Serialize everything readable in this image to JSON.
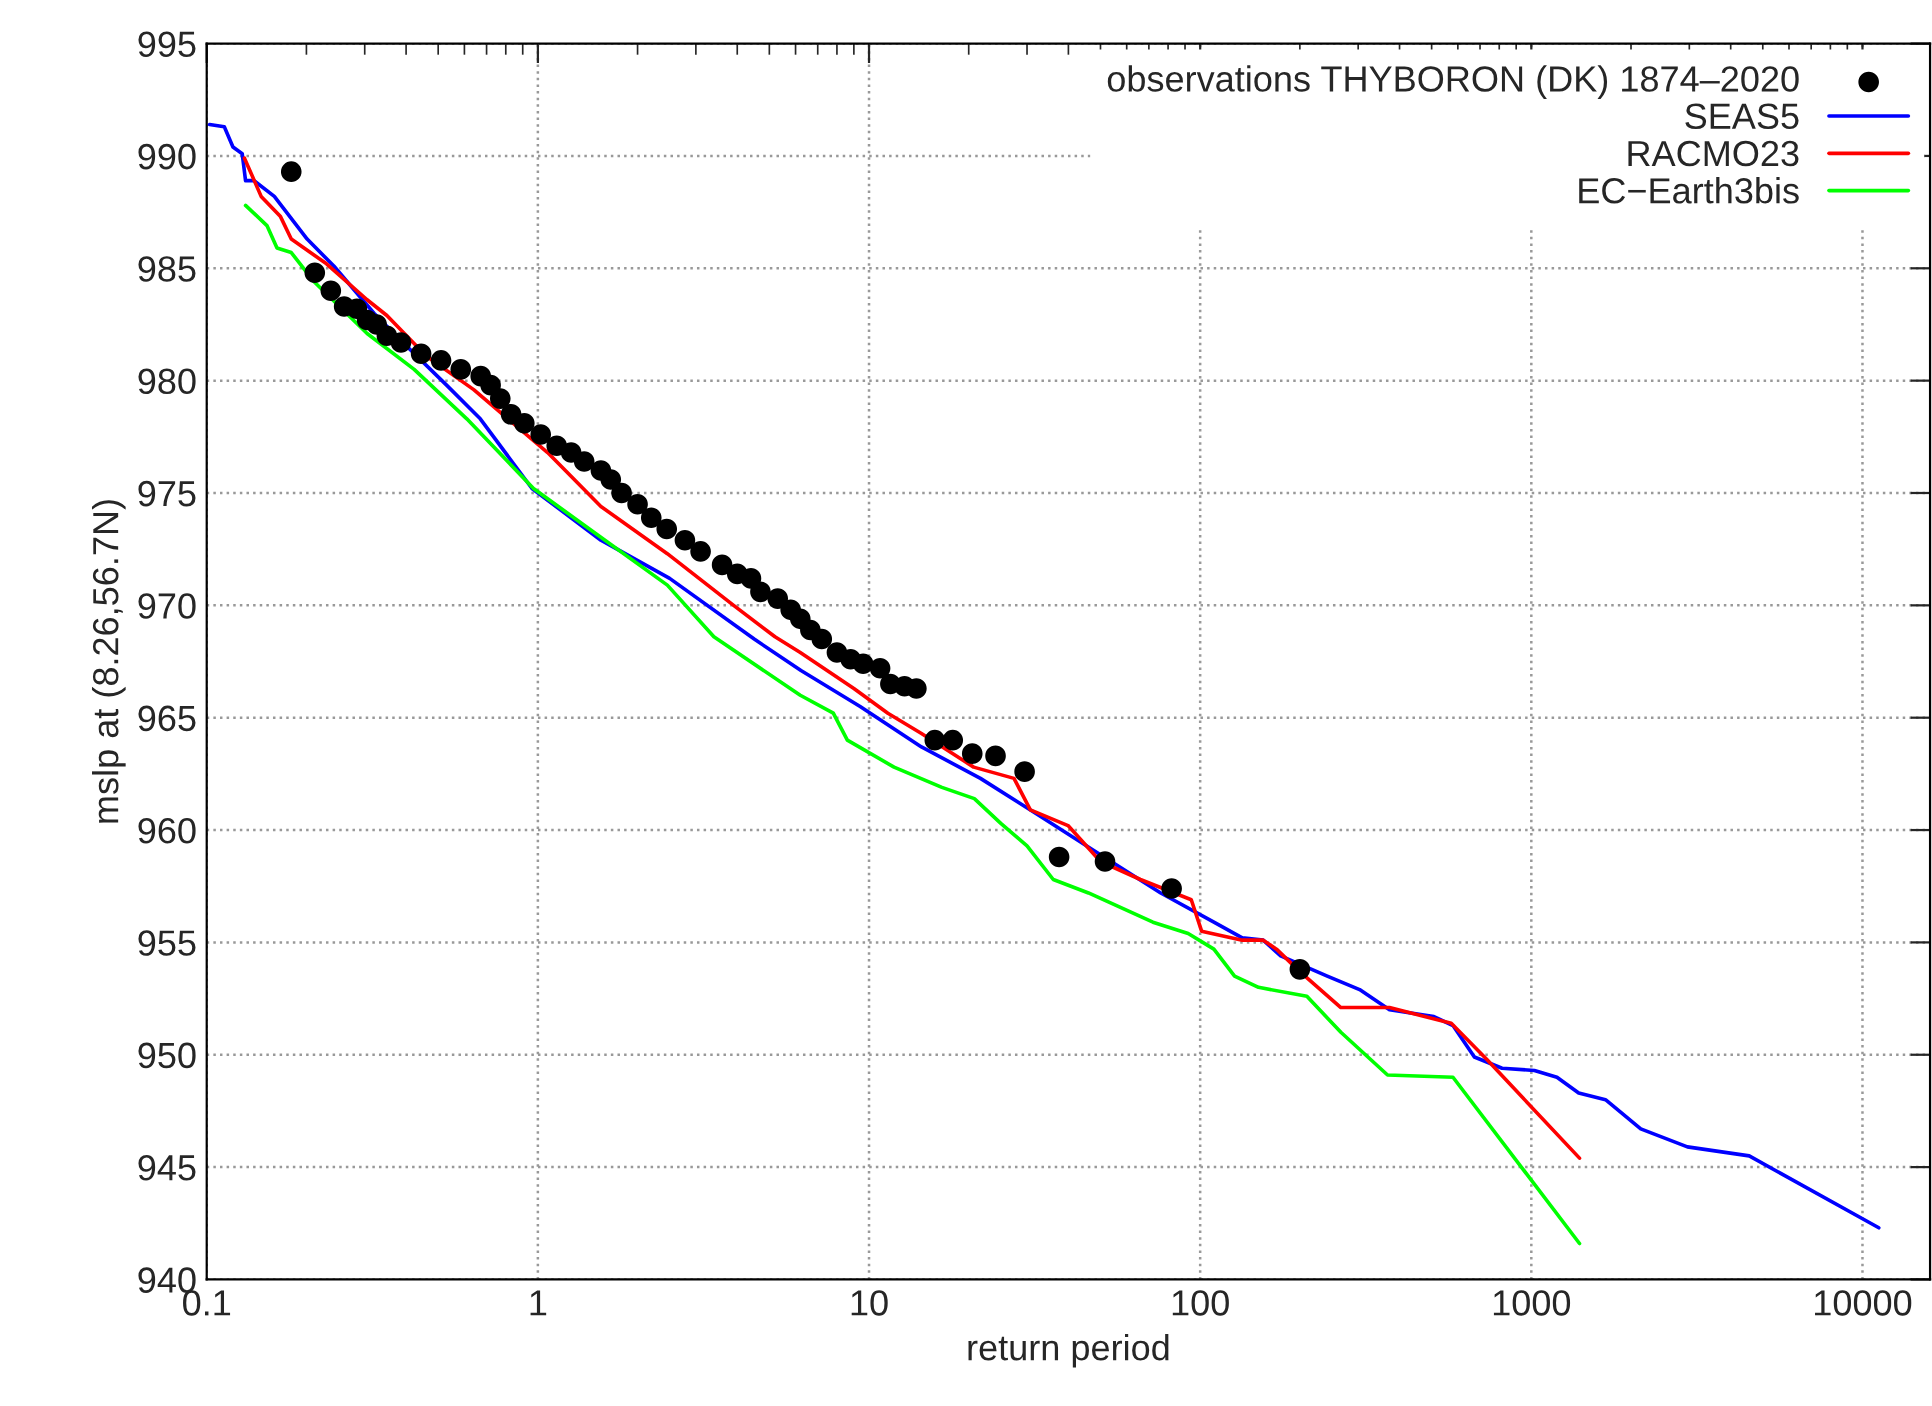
{
  "chart_data": {
    "type": "line",
    "xlabel": "return period",
    "ylabel": "mslp at (8.26,56.7N)",
    "log": "x",
    "grid": true,
    "legend": "top right",
    "xlim": [
      0.1,
      16000
    ],
    "xticks": [
      0.1,
      1,
      10,
      100,
      1000,
      10000
    ],
    "ylim": [
      940,
      995
    ],
    "yticks": [
      940,
      945,
      950,
      955,
      960,
      965,
      970,
      975,
      980,
      985,
      990,
      995
    ],
    "series": [
      {
        "name": "observations THYBORON (DK) 1874–2020",
        "type": "scatter",
        "marker": "circle",
        "color": "#000000",
        "x": [
          0.18,
          0.212,
          0.237,
          0.26,
          0.284,
          0.305,
          0.326,
          0.35,
          0.386,
          0.444,
          0.51,
          0.585,
          0.672,
          0.72,
          0.77,
          0.83,
          0.91,
          1.02,
          1.14,
          1.26,
          1.38,
          1.55,
          1.66,
          1.79,
          2.0,
          2.2,
          2.45,
          2.78,
          3.1,
          3.6,
          4.0,
          4.4,
          4.7,
          5.3,
          5.8,
          6.2,
          6.65,
          7.2,
          8.0,
          8.8,
          9.6,
          10.8,
          11.6,
          12.8,
          13.9,
          15.8,
          17.9,
          20.5,
          24.1,
          29.5,
          37.5,
          51.6,
          82,
          200
        ],
        "values": [
          989.3,
          984.8,
          984.0,
          983.3,
          983.2,
          982.7,
          982.5,
          982.0,
          981.7,
          981.2,
          980.9,
          980.5,
          980.2,
          979.8,
          979.2,
          978.5,
          978.1,
          977.6,
          977.1,
          976.8,
          976.4,
          976.0,
          975.6,
          975.0,
          974.5,
          973.9,
          973.4,
          972.9,
          972.4,
          971.8,
          971.4,
          971.2,
          970.6,
          970.3,
          969.8,
          969.4,
          968.9,
          968.5,
          967.9,
          967.6,
          967.4,
          967.2,
          966.5,
          966.4,
          966.3,
          964.0,
          964.0,
          963.4,
          963.3,
          962.6,
          958.8,
          958.6,
          957.4,
          953.8
        ]
      },
      {
        "name": "SEAS5",
        "color": "#0000ff",
        "x": [
          0.102,
          0.113,
          0.12,
          0.128,
          0.131,
          0.139,
          0.16,
          0.201,
          0.242,
          0.32,
          0.385,
          0.53,
          0.67,
          0.96,
          1.55,
          2.5,
          4.5,
          6.23,
          9.4,
          14.4,
          21.7,
          31.4,
          47.6,
          76,
          110,
          134,
          155,
          175,
          242,
          303,
          373,
          508,
          580,
          673,
          816,
          1022,
          1195,
          1390,
          1675,
          2140,
          2960,
          4550,
          11200
        ],
        "values": [
          991.4,
          991.3,
          990.4,
          990.1,
          988.9,
          988.9,
          988.2,
          986.3,
          985.1,
          983.0,
          981.8,
          979.8,
          978.3,
          975.2,
          972.9,
          971.2,
          968.5,
          967.1,
          965.5,
          963.7,
          962.3,
          960.8,
          959.1,
          957.2,
          955.9,
          955.2,
          955.1,
          954.4,
          953.5,
          952.9,
          952.0,
          951.7,
          951.3,
          949.9,
          949.4,
          949.3,
          949.0,
          948.3,
          948.0,
          946.7,
          945.9,
          945.5,
          942.3
        ]
      },
      {
        "name": "RACMO23",
        "color": "#ff0000",
        "x": [
          0.13,
          0.146,
          0.167,
          0.18,
          0.23,
          0.305,
          0.35,
          0.46,
          0.64,
          1.07,
          1.55,
          2.46,
          3.9,
          5.2,
          6.2,
          9.0,
          11.4,
          14.4,
          20.7,
          27.4,
          30.7,
          39.9,
          50,
          66,
          94,
          101,
          134,
          155,
          170,
          200,
          266,
          373,
          573,
          733,
          1398
        ],
        "values": [
          989.9,
          988.2,
          987.3,
          986.3,
          985.2,
          983.6,
          982.9,
          981.1,
          979.6,
          976.8,
          974.4,
          972.3,
          970.0,
          968.6,
          967.9,
          966.3,
          965.2,
          964.3,
          962.8,
          962.3,
          960.9,
          960.2,
          958.6,
          957.8,
          956.9,
          955.5,
          955.1,
          955.1,
          954.7,
          953.7,
          952.1,
          952.1,
          951.4,
          949.8,
          945.4
        ]
      },
      {
        "name": "EC−Earth3bis",
        "color": "#00ff00",
        "x": [
          0.131,
          0.152,
          0.163,
          0.18,
          0.211,
          0.305,
          0.423,
          0.61,
          0.97,
          1.4,
          2.46,
          3.4,
          6.2,
          7.8,
          8.6,
          11.9,
          16.6,
          20.8,
          25,
          30,
          36,
          46,
          72,
          92,
          110,
          127,
          150,
          210,
          266,
          368,
          580,
          1398
        ],
        "values": [
          987.8,
          986.9,
          985.9,
          985.7,
          984.4,
          982.1,
          980.5,
          978.3,
          975.2,
          973.5,
          970.9,
          968.6,
          966.0,
          965.2,
          964.0,
          962.8,
          961.9,
          961.4,
          960.3,
          959.3,
          957.8,
          957.2,
          955.9,
          955.4,
          954.7,
          953.5,
          953.0,
          952.6,
          951.0,
          949.1,
          949.0,
          941.6
        ]
      }
    ]
  }
}
